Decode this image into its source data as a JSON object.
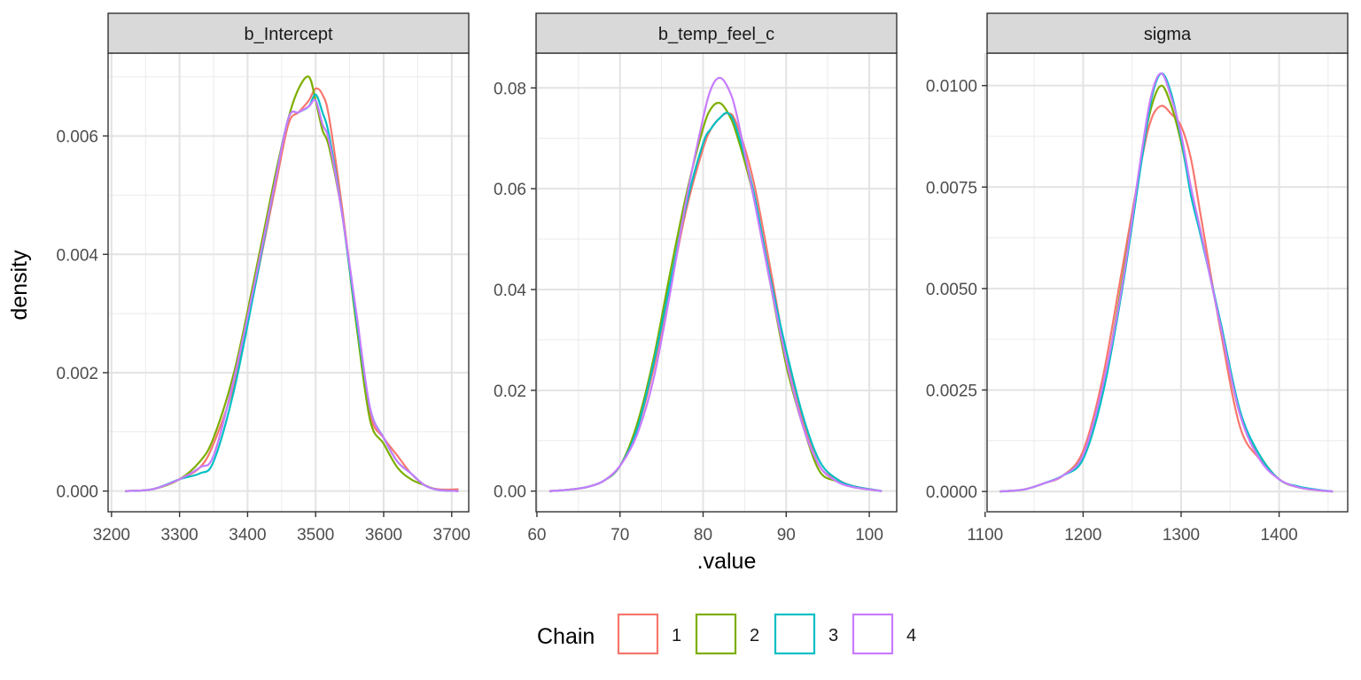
{
  "figure": {
    "ylabel": "density",
    "xlabel": ".value",
    "legend": {
      "title": "Chain",
      "position": "bottom",
      "entries": [
        "1",
        "2",
        "3",
        "4"
      ],
      "colors": [
        "#F8766D",
        "#7CAE00",
        "#00BFC4",
        "#C77CFF"
      ]
    }
  },
  "chart_data": [
    {
      "type": "line",
      "title": "b_Intercept",
      "xlim": [
        3195,
        3725
      ],
      "ylim": [
        -0.00035,
        0.0074
      ],
      "x_ticks": [
        3200,
        3300,
        3400,
        3500,
        3600,
        3700
      ],
      "x_tick_labels": [
        "3200",
        "3300",
        "3400",
        "3500",
        "3600",
        "3700"
      ],
      "y_ticks": [
        0,
        0.002,
        0.004,
        0.006
      ],
      "y_tick_labels": [
        "0.000",
        "0.002",
        "0.004",
        "0.006"
      ],
      "grid": true,
      "series": [
        {
          "name": "1",
          "x": [
            3220,
            3260,
            3300,
            3330,
            3350,
            3380,
            3410,
            3440,
            3460,
            3475,
            3490,
            3500,
            3510,
            3520,
            3540,
            3560,
            3580,
            3600,
            3620,
            3640,
            3660,
            3680,
            3710
          ],
          "y": [
            0,
            3e-05,
            0.0002,
            0.0004,
            0.0008,
            0.0018,
            0.0034,
            0.0051,
            0.0062,
            0.0064,
            0.0066,
            0.0068,
            0.0067,
            0.0063,
            0.0047,
            0.0029,
            0.0013,
            0.0009,
            0.0006,
            0.0003,
            0.0001,
            3e-05,
            3e-05
          ]
        },
        {
          "name": "2",
          "x": [
            3220,
            3260,
            3300,
            3330,
            3350,
            3380,
            3410,
            3440,
            3460,
            3475,
            3490,
            3500,
            3510,
            3520,
            3540,
            3560,
            3580,
            3600,
            3620,
            3640,
            3660,
            3680,
            3710
          ],
          "y": [
            0,
            3e-05,
            0.0002,
            0.0005,
            0.0009,
            0.002,
            0.0036,
            0.0053,
            0.0063,
            0.0068,
            0.007,
            0.0066,
            0.0061,
            0.0058,
            0.0046,
            0.0028,
            0.0012,
            0.0008,
            0.0004,
            0.0002,
            0.0001,
            2e-05,
            0
          ]
        },
        {
          "name": "3",
          "x": [
            3220,
            3260,
            3300,
            3330,
            3350,
            3380,
            3410,
            3440,
            3460,
            3475,
            3490,
            3500,
            3510,
            3520,
            3540,
            3560,
            3580,
            3600,
            3620,
            3640,
            3660,
            3680,
            3710
          ],
          "y": [
            0,
            3e-05,
            0.0002,
            0.0003,
            0.0005,
            0.0017,
            0.0034,
            0.0052,
            0.0063,
            0.0064,
            0.0065,
            0.0067,
            0.0064,
            0.006,
            0.0046,
            0.0029,
            0.0014,
            0.0009,
            0.0005,
            0.0003,
            0.0001,
            2e-05,
            0
          ]
        },
        {
          "name": "4",
          "x": [
            3220,
            3260,
            3300,
            3330,
            3350,
            3380,
            3410,
            3440,
            3460,
            3475,
            3490,
            3500,
            3510,
            3520,
            3540,
            3560,
            3580,
            3600,
            3620,
            3640,
            3660,
            3680,
            3710
          ],
          "y": [
            0,
            3e-05,
            0.0002,
            0.0004,
            0.0006,
            0.0019,
            0.0035,
            0.0052,
            0.0063,
            0.0064,
            0.0065,
            0.0066,
            0.0062,
            0.0059,
            0.0046,
            0.003,
            0.0014,
            0.0009,
            0.0005,
            0.0003,
            0.0001,
            2e-05,
            0
          ]
        }
      ]
    },
    {
      "type": "line",
      "title": "b_temp_feel_c",
      "xlim": [
        59.9,
        103.3
      ],
      "ylim": [
        -0.0041,
        0.0869
      ],
      "x_ticks": [
        60,
        70,
        80,
        90,
        100
      ],
      "x_tick_labels": [
        "60",
        "70",
        "80",
        "90",
        "100"
      ],
      "y_ticks": [
        0,
        0.02,
        0.04,
        0.06,
        0.08
      ],
      "y_tick_labels": [
        "0.00",
        "0.02",
        "0.04",
        "0.06",
        "0.08"
      ],
      "grid": true,
      "series": [
        {
          "name": "1",
          "x": [
            61.5,
            64,
            66,
            68,
            70,
            72,
            74,
            76,
            78,
            80,
            81,
            82,
            83,
            84,
            86,
            88,
            90,
            92,
            94,
            96,
            98,
            101.5
          ],
          "y": [
            0,
            0.0003,
            0.0008,
            0.002,
            0.005,
            0.012,
            0.024,
            0.04,
            0.056,
            0.068,
            0.072,
            0.074,
            0.075,
            0.073,
            0.062,
            0.045,
            0.027,
            0.014,
            0.005,
            0.0025,
            0.001,
            0
          ]
        },
        {
          "name": "2",
          "x": [
            61.5,
            64,
            66,
            68,
            70,
            72,
            74,
            76,
            78,
            80,
            81,
            82,
            83,
            84,
            86,
            88,
            90,
            92,
            94,
            96,
            98,
            101.5
          ],
          "y": [
            0,
            0.0003,
            0.0008,
            0.002,
            0.005,
            0.013,
            0.026,
            0.043,
            0.059,
            0.072,
            0.076,
            0.077,
            0.075,
            0.071,
            0.059,
            0.042,
            0.025,
            0.013,
            0.004,
            0.002,
            0.0008,
            0
          ]
        },
        {
          "name": "3",
          "x": [
            61.5,
            64,
            66,
            68,
            70,
            72,
            74,
            76,
            78,
            80,
            81,
            82,
            83,
            84,
            86,
            88,
            90,
            92,
            94,
            96,
            98,
            101.5
          ],
          "y": [
            0,
            0.0003,
            0.0008,
            0.002,
            0.005,
            0.012,
            0.025,
            0.041,
            0.057,
            0.069,
            0.072,
            0.074,
            0.075,
            0.072,
            0.06,
            0.043,
            0.028,
            0.015,
            0.006,
            0.0025,
            0.001,
            0
          ]
        },
        {
          "name": "4",
          "x": [
            61.5,
            64,
            66,
            68,
            70,
            72,
            74,
            76,
            78,
            80,
            81,
            82,
            83,
            84,
            86,
            88,
            90,
            92,
            94,
            96,
            98,
            101.5
          ],
          "y": [
            0,
            0.0003,
            0.0008,
            0.002,
            0.005,
            0.011,
            0.022,
            0.039,
            0.058,
            0.074,
            0.08,
            0.082,
            0.08,
            0.075,
            0.059,
            0.042,
            0.026,
            0.013,
            0.005,
            0.002,
            0.0008,
            0
          ]
        }
      ]
    },
    {
      "type": "line",
      "title": "sigma",
      "xlim": [
        1102,
        1470
      ],
      "ylim": [
        -0.0005,
        0.0108
      ],
      "x_ticks": [
        1100,
        1200,
        1300,
        1400
      ],
      "x_tick_labels": [
        "1100",
        "1200",
        "1300",
        "1400"
      ],
      "y_ticks": [
        0,
        0.0025,
        0.005,
        0.0075,
        0.01
      ],
      "y_tick_labels": [
        "0.0000",
        "0.0025",
        "0.0050",
        "0.0075",
        "0.0100"
      ],
      "grid": true,
      "series": [
        {
          "name": "1",
          "x": [
            1115,
            1140,
            1160,
            1180,
            1200,
            1220,
            1240,
            1260,
            1270,
            1280,
            1290,
            1300,
            1310,
            1320,
            1340,
            1360,
            1380,
            1400,
            1420,
            1440,
            1455
          ],
          "y": [
            0,
            5e-05,
            0.0002,
            0.0004,
            0.001,
            0.0028,
            0.0055,
            0.0082,
            0.0092,
            0.0095,
            0.0093,
            0.009,
            0.0082,
            0.0068,
            0.004,
            0.0016,
            0.0008,
            0.0003,
            0.0001,
            3e-05,
            0
          ]
        },
        {
          "name": "2",
          "x": [
            1115,
            1140,
            1160,
            1180,
            1200,
            1220,
            1240,
            1260,
            1270,
            1280,
            1290,
            1300,
            1310,
            1320,
            1340,
            1360,
            1380,
            1400,
            1420,
            1440,
            1455
          ],
          "y": [
            0,
            5e-05,
            0.0002,
            0.0004,
            0.0009,
            0.0025,
            0.0052,
            0.0083,
            0.0095,
            0.01,
            0.0095,
            0.0086,
            0.0074,
            0.0064,
            0.0041,
            0.0019,
            0.0009,
            0.0003,
            0.0001,
            3e-05,
            0
          ]
        },
        {
          "name": "3",
          "x": [
            1115,
            1140,
            1160,
            1180,
            1200,
            1220,
            1240,
            1260,
            1270,
            1280,
            1290,
            1300,
            1310,
            1320,
            1340,
            1360,
            1380,
            1400,
            1420,
            1440,
            1455
          ],
          "y": [
            0,
            5e-05,
            0.0002,
            0.0004,
            0.0008,
            0.0024,
            0.005,
            0.0082,
            0.0097,
            0.0103,
            0.0098,
            0.0087,
            0.0073,
            0.0063,
            0.0042,
            0.002,
            0.0009,
            0.0003,
            0.00012,
            4e-05,
            0
          ]
        },
        {
          "name": "4",
          "x": [
            1115,
            1140,
            1160,
            1180,
            1200,
            1220,
            1240,
            1260,
            1270,
            1280,
            1290,
            1300,
            1310,
            1320,
            1340,
            1360,
            1380,
            1400,
            1420,
            1440,
            1455
          ],
          "y": [
            0,
            5e-05,
            0.0002,
            0.0004,
            0.0009,
            0.0026,
            0.0051,
            0.0084,
            0.0098,
            0.0103,
            0.0097,
            0.0088,
            0.0075,
            0.0064,
            0.0041,
            0.0019,
            0.0008,
            0.0003,
            0.0001,
            3e-05,
            0
          ]
        }
      ]
    }
  ]
}
